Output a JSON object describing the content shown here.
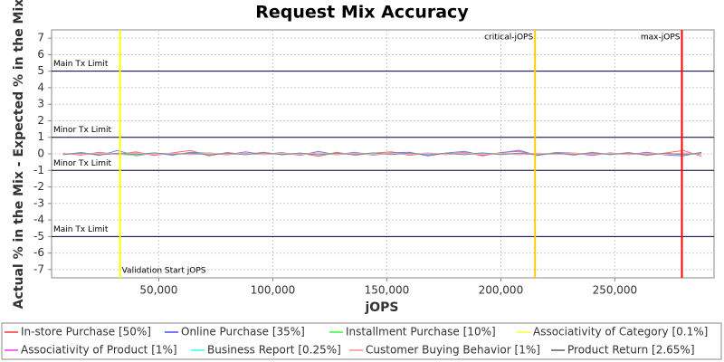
{
  "chart_data": {
    "type": "line",
    "title": "Request Mix Accuracy",
    "x_label": "jOPS",
    "y_label": "Actual % in the Mix - Expected % in the Mix",
    "xlim": [
      3000,
      293500
    ],
    "ylim": [
      -7.5,
      7.5
    ],
    "xticks": [
      {
        "value": 50000,
        "label": "50,000"
      },
      {
        "value": 100000,
        "label": "100,000"
      },
      {
        "value": 150000,
        "label": "150,000"
      },
      {
        "value": 200000,
        "label": "200,000"
      },
      {
        "value": 250000,
        "label": "250,000"
      }
    ],
    "yticks": [
      -7,
      -6,
      -5,
      -4,
      -3,
      -2,
      -1,
      0,
      1,
      2,
      3,
      4,
      5,
      6,
      7
    ],
    "grid": true,
    "limits": [
      {
        "label": "Main Tx Limit",
        "value": 5
      },
      {
        "label": "Minor Tx Limit",
        "value": 1
      },
      {
        "label": "Minor Tx Limit",
        "value": -1
      },
      {
        "label": "Main Tx Limit",
        "value": -5
      }
    ],
    "markers": [
      {
        "label": "Validation Start jOPS",
        "value": 33000,
        "color": "#ffff00",
        "label_pos": "bottom"
      },
      {
        "label": "critical-jOPS",
        "value": 215000,
        "color": "#ffcc00",
        "label_pos": "top"
      },
      {
        "label": "max-jOPS",
        "value": 279400,
        "color": "#ff0000",
        "label_pos": "top"
      }
    ],
    "x": [
      8000,
      16000,
      24000,
      32000,
      40000,
      48000,
      56000,
      64000,
      72000,
      80000,
      88000,
      96000,
      104000,
      112000,
      120000,
      128000,
      136000,
      144000,
      152000,
      160000,
      168000,
      176000,
      184000,
      192000,
      200000,
      208000,
      216000,
      224000,
      232000,
      240000,
      248000,
      256000,
      264000,
      272000,
      280000,
      288000
    ],
    "series": [
      {
        "name": "In-store Purchase [50%]",
        "color": "#ff6666",
        "values": [
          0.05,
          -0.08,
          0.1,
          -0.05,
          0.12,
          -0.1,
          0.06,
          0.2,
          -0.12,
          0.08,
          -0.04,
          0.1,
          -0.06,
          0.05,
          -0.15,
          0.1,
          -0.08,
          0.04,
          0.12,
          -0.1,
          0.06,
          -0.05,
          0.1,
          -0.12,
          0.08,
          0.15,
          -0.1,
          0.06,
          -0.08,
          0.1,
          -0.05,
          0.08,
          -0.1,
          0.05,
          0.2,
          -0.15
        ]
      },
      {
        "name": "Online Purchase [35%]",
        "color": "#7777ff",
        "values": [
          -0.05,
          0.08,
          -0.1,
          0.2,
          -0.12,
          0.05,
          -0.08,
          0.1,
          0.05,
          -0.06,
          0.12,
          -0.04,
          0.08,
          -0.1,
          0.15,
          -0.06,
          0.1,
          -0.08,
          0.06,
          0.1,
          -0.12,
          0.05,
          0.15,
          -0.08,
          0.06,
          0.22,
          -0.1,
          0.08,
          0.05,
          -0.1,
          0.06,
          -0.05,
          0.1,
          -0.06,
          -0.12,
          0.1
        ]
      },
      {
        "name": "Installment Purchase [10%]",
        "color": "#66ff66",
        "values": [
          0.02,
          -0.03,
          0.04,
          -0.02,
          -0.1,
          0.05,
          -0.03,
          0.02,
          0.06,
          -0.04,
          0.03,
          -0.02,
          0.05,
          -0.03,
          0.02,
          -0.05,
          0.04,
          -0.02,
          0.03,
          -0.04,
          0.05,
          -0.03,
          0.02,
          0.04,
          -0.05,
          0.03,
          -0.02,
          0.04,
          -0.03,
          0.05,
          -0.02,
          0.03,
          -0.04,
          0.02,
          -0.03,
          0.04
        ]
      },
      {
        "name": "Associativity of Category [0.1%]",
        "color": "#ffff66",
        "values": [
          0.01,
          0.0,
          -0.01,
          0.01,
          0.0,
          -0.01,
          0.01,
          0.0,
          -0.01,
          0.01,
          0.0,
          -0.01,
          0.01,
          0.0,
          -0.01,
          0.01,
          0.0,
          -0.01,
          0.01,
          0.0,
          -0.01,
          0.01,
          0.0,
          -0.01,
          0.01,
          0.0,
          -0.01,
          0.01,
          0.0,
          -0.01,
          0.01,
          0.0,
          -0.01,
          0.01,
          0.0,
          -0.01
        ]
      },
      {
        "name": "Associativity of Product [1%]",
        "color": "#ff66ff",
        "values": [
          0.03,
          -0.02,
          0.04,
          -0.03,
          0.02,
          -0.04,
          0.03,
          -0.02,
          0.05,
          -0.03,
          0.02,
          -0.04,
          0.03,
          -0.02,
          0.04,
          -0.03,
          0.02,
          -0.04,
          0.03,
          -0.02,
          0.04,
          -0.03,
          0.02,
          -0.04,
          0.03,
          -0.02,
          0.04,
          -0.03,
          0.02,
          -0.04,
          0.03,
          -0.02,
          0.04,
          -0.03,
          0.02,
          -0.04
        ]
      },
      {
        "name": "Business Report [0.25%]",
        "color": "#66ffff",
        "values": [
          -0.02,
          0.02,
          -0.01,
          0.03,
          -0.02,
          0.01,
          -0.03,
          0.02,
          -0.01,
          0.02,
          -0.02,
          0.01,
          -0.03,
          0.02,
          -0.01,
          0.03,
          -0.02,
          0.01,
          -0.02,
          0.03,
          -0.01,
          0.02,
          -0.03,
          0.01,
          -0.02,
          0.02,
          -0.01,
          0.03,
          -0.02,
          0.01,
          -0.03,
          0.02,
          -0.01,
          0.02,
          -0.02,
          0.01
        ]
      },
      {
        "name": "Customer Buying Behavior [1%]",
        "color": "#ffaaaa",
        "values": [
          0.04,
          -0.05,
          0.03,
          -0.04,
          0.06,
          -0.03,
          0.05,
          -0.06,
          0.04,
          -0.03,
          0.05,
          -0.04,
          0.03,
          -0.05,
          0.06,
          -0.04,
          0.03,
          -0.05,
          0.04,
          -0.03,
          0.06,
          -0.04,
          0.05,
          -0.03,
          0.04,
          -0.06,
          0.03,
          -0.04,
          0.05,
          -0.03,
          0.04,
          -0.05,
          0.03,
          -0.04,
          0.06,
          -0.03
        ]
      },
      {
        "name": "Product Return [2.65%]",
        "color": "#888888",
        "values": [
          -0.04,
          0.05,
          -0.06,
          0.04,
          -0.05,
          0.06,
          -0.04,
          0.05,
          -0.06,
          0.04,
          -0.05,
          0.06,
          -0.04,
          0.05,
          -0.06,
          0.04,
          -0.05,
          0.06,
          -0.04,
          0.05,
          -0.06,
          0.04,
          -0.05,
          0.06,
          -0.04,
          0.05,
          -0.06,
          0.04,
          -0.05,
          0.06,
          -0.04,
          0.05,
          -0.06,
          0.04,
          -0.05,
          0.06
        ]
      }
    ]
  }
}
